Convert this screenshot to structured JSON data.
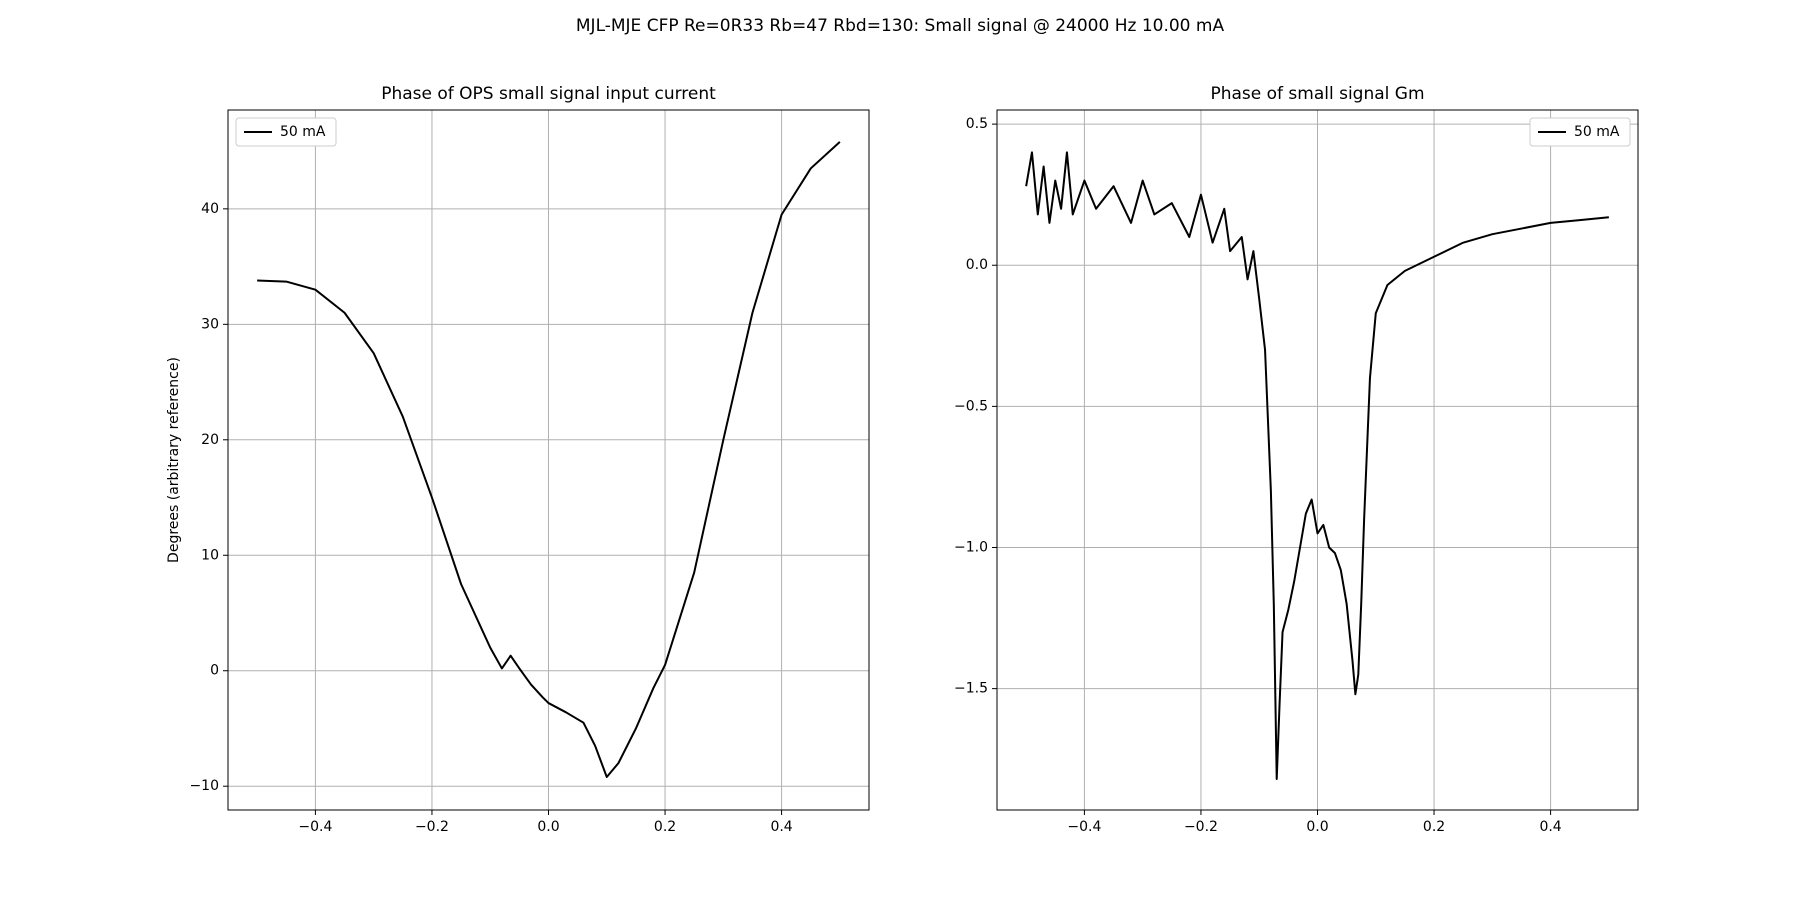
{
  "title": "MJL-MJE CFP Re=0R33 Rb=47 Rbd=130: Small signal @ 24000 Hz 10.00 mA",
  "chart_data": [
    {
      "type": "line",
      "title": "Phase of OPS small signal input current",
      "ylabel": "Degrees (arbitrary reference)",
      "x": [
        -0.5,
        -0.45,
        -0.4,
        -0.35,
        -0.3,
        -0.25,
        -0.2,
        -0.15,
        -0.1,
        -0.08,
        -0.065,
        -0.05,
        -0.03,
        -0.01,
        0.0,
        0.03,
        0.06,
        0.08,
        0.1,
        0.12,
        0.15,
        0.18,
        0.2,
        0.25,
        0.3,
        0.35,
        0.4,
        0.45,
        0.5
      ],
      "series": [
        {
          "name": "50 mA",
          "color": "#000000",
          "values": [
            33.8,
            33.7,
            33.0,
            31.0,
            27.5,
            22.0,
            15.0,
            7.5,
            2.0,
            0.2,
            1.3,
            0.2,
            -1.2,
            -2.3,
            -2.8,
            -3.6,
            -4.5,
            -6.5,
            -9.2,
            -8.0,
            -5.0,
            -1.5,
            0.5,
            8.5,
            20.0,
            31.0,
            39.5,
            43.5,
            45.8
          ]
        }
      ],
      "xlim": [
        -0.55,
        0.55
      ],
      "ylim": [
        -12.06,
        48.56
      ],
      "xticks": [
        {
          "value": -0.4,
          "label": "−0.4"
        },
        {
          "value": -0.2,
          "label": "−0.2"
        },
        {
          "value": 0.0,
          "label": "0.0"
        },
        0.2,
        0.4
      ],
      "yticks": [
        {
          "value": -10,
          "label": "−10"
        },
        0,
        10,
        20,
        30,
        40
      ],
      "grid": true,
      "legend": "upper left"
    },
    {
      "type": "line",
      "title": "Phase of small signal Gm",
      "x": [
        -0.5,
        -0.49,
        -0.48,
        -0.47,
        -0.46,
        -0.45,
        -0.44,
        -0.43,
        -0.42,
        -0.4,
        -0.38,
        -0.35,
        -0.32,
        -0.3,
        -0.28,
        -0.25,
        -0.22,
        -0.2,
        -0.18,
        -0.16,
        -0.15,
        -0.13,
        -0.12,
        -0.11,
        -0.1,
        -0.09,
        -0.08,
        -0.075,
        -0.07,
        -0.065,
        -0.06,
        -0.05,
        -0.04,
        -0.03,
        -0.02,
        -0.01,
        0.0,
        0.01,
        0.02,
        0.03,
        0.04,
        0.05,
        0.06,
        0.065,
        0.07,
        0.075,
        0.08,
        0.09,
        0.1,
        0.12,
        0.15,
        0.2,
        0.25,
        0.3,
        0.35,
        0.4,
        0.45,
        0.5
      ],
      "series": [
        {
          "name": "50 mA",
          "color": "#000000",
          "values": [
            0.28,
            0.4,
            0.18,
            0.35,
            0.15,
            0.3,
            0.2,
            0.4,
            0.18,
            0.3,
            0.2,
            0.28,
            0.15,
            0.3,
            0.18,
            0.22,
            0.1,
            0.25,
            0.08,
            0.2,
            0.05,
            0.1,
            -0.05,
            0.05,
            -0.12,
            -0.3,
            -0.8,
            -1.2,
            -1.82,
            -1.55,
            -1.3,
            -1.22,
            -1.12,
            -1.0,
            -0.88,
            -0.83,
            -0.95,
            -0.92,
            -1.0,
            -1.02,
            -1.08,
            -1.2,
            -1.4,
            -1.52,
            -1.45,
            -1.2,
            -0.9,
            -0.4,
            -0.17,
            -0.07,
            -0.02,
            0.03,
            0.08,
            0.11,
            0.13,
            0.15,
            0.16,
            0.17
          ]
        }
      ],
      "xlim": [
        -0.55,
        0.55
      ],
      "ylim": [
        -1.93,
        0.55
      ],
      "xticks": [
        {
          "value": -0.4,
          "label": "−0.4"
        },
        {
          "value": -0.2,
          "label": "−0.2"
        },
        {
          "value": 0.0,
          "label": "0.0"
        },
        0.2,
        0.4
      ],
      "yticks": [
        {
          "value": -1.5,
          "label": "−1.5"
        },
        {
          "value": -1.0,
          "label": "−1.0"
        },
        {
          "value": -0.5,
          "label": "−0.5"
        },
        {
          "value": 0.0,
          "label": "0.0"
        },
        0.5
      ],
      "grid": true,
      "legend": "upper right"
    }
  ]
}
